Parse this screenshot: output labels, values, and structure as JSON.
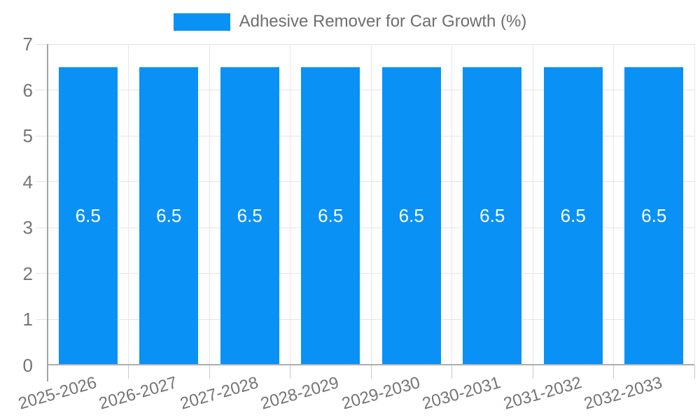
{
  "legend": {
    "label": "Adhesive Remover for Car Growth (%)"
  },
  "chart_data": {
    "type": "bar",
    "title": "Adhesive Remover for Car Growth (%)",
    "categories": [
      "2025-2026",
      "2026-2027",
      "2027-2028",
      "2028-2029",
      "2029-2030",
      "2030-2031",
      "2031-2032",
      "2032-2033"
    ],
    "series": [
      {
        "name": "Adhesive Remover for Car Growth (%)",
        "values": [
          6.5,
          6.5,
          6.5,
          6.5,
          6.5,
          6.5,
          6.5,
          6.5
        ]
      }
    ],
    "bar_value_labels": [
      "6.5",
      "6.5",
      "6.5",
      "6.5",
      "6.5",
      "6.5",
      "6.5",
      "6.5"
    ],
    "xlabel": "",
    "ylabel": "",
    "ylim": [
      0,
      7
    ],
    "yticks": [
      0,
      1,
      2,
      3,
      4,
      5,
      6,
      7
    ],
    "grid": true,
    "legend_position": "top",
    "x_label_rotation_deg": -16,
    "colors": {
      "bar": "#0a91f5",
      "bar_label_text": "#ffffff",
      "axis_text": "#757575",
      "legend_text": "#6e6e6e",
      "gridline": "#e6e6e6",
      "axis_line": "#a3a3a3",
      "tick": "#c9c9c9",
      "background": "#ffffff"
    }
  }
}
